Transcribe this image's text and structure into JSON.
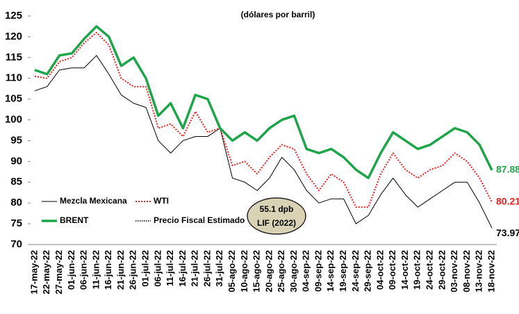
{
  "chart_data": {
    "type": "line",
    "title": "(dólares por barril)",
    "categories": [
      "17-may-22",
      "22-may-22",
      "27-may-22",
      "01-jun-22",
      "06-jun-22",
      "11-jun-22",
      "16-jun-22",
      "21-jun-22",
      "26-jun-22",
      "01-jul-22",
      "06-jul-22",
      "11-jul-22",
      "16-jul-22",
      "21-jul-22",
      "26-jul-22",
      "31-jul-22",
      "05-ago-22",
      "10-ago-22",
      "15-ago-22",
      "20-ago-22",
      "25-ago-22",
      "30-ago-22",
      "04-sep-22",
      "09-sep-22",
      "14-sep-22",
      "19-sep-22",
      "24-sep-22",
      "29-sep-22",
      "04-oct-22",
      "09-oct-22",
      "14-oct-22",
      "19-oct-22",
      "24-oct-22",
      "29-oct-22",
      "03-nov-22",
      "08-nov-22",
      "13-nov-22",
      "18-nov-22"
    ],
    "series": [
      {
        "name": "Mezcla Mexicana",
        "color": "#000000",
        "width": 1,
        "dash": "none",
        "values": [
          107,
          108,
          112,
          112.5,
          112.5,
          115.5,
          111,
          106,
          104,
          103,
          95,
          92,
          95,
          96,
          96,
          98,
          86,
          85,
          83,
          86,
          91,
          88,
          83,
          80,
          81,
          81,
          75,
          77,
          82,
          86,
          82,
          79,
          81,
          83,
          85,
          85,
          80,
          73.97
        ]
      },
      {
        "name": "WTI",
        "color": "#e8201c",
        "width": 2,
        "dash": "2 2",
        "values": [
          110.5,
          110,
          114,
          115,
          118.5,
          121,
          118,
          110,
          108,
          108,
          98,
          99,
          96,
          102,
          97,
          98,
          89,
          90,
          87,
          91,
          94,
          93,
          87,
          83,
          87,
          85,
          79,
          79,
          87,
          92,
          88,
          86,
          88,
          89,
          92,
          90,
          86,
          80.21
        ]
      },
      {
        "name": "BRENT",
        "color": "#1ea54a",
        "width": 3.5,
        "dash": "none",
        "values": [
          112,
          111,
          115.5,
          116,
          119.5,
          122.5,
          120,
          113,
          115,
          110,
          101,
          104,
          98,
          106,
          105,
          98,
          95,
          97,
          95,
          98,
          100,
          101,
          93,
          92,
          93,
          91,
          88,
          86,
          92,
          97,
          95,
          93,
          94,
          96,
          98,
          97,
          94,
          87.88
        ]
      },
      {
        "name": "Precio Fiscal Estimado",
        "color": "#000000",
        "width": 1.5,
        "dash": "1.5 1.5",
        "values": [
          55.1,
          55.1,
          55.1,
          55.1,
          55.1,
          55.1,
          55.1,
          55.1,
          55.1,
          55.1,
          55.1,
          55.1,
          55.1,
          55.1,
          55.1,
          55.1,
          55.1,
          55.1,
          55.1,
          55.1,
          55.1,
          55.1,
          55.1,
          55.1,
          55.1,
          55.1,
          55.1,
          55.1,
          55.1,
          55.1,
          55.1,
          55.1,
          55.1,
          55.1,
          55.1,
          55.1,
          55.1,
          55.1
        ]
      }
    ],
    "annotation": [
      "55.1 dpb",
      "LIF (2022)"
    ],
    "ylim": [
      70,
      125
    ],
    "yticks": [
      70,
      75,
      80,
      85,
      90,
      95,
      100,
      105,
      110,
      115,
      120,
      125
    ],
    "grid": false
  }
}
